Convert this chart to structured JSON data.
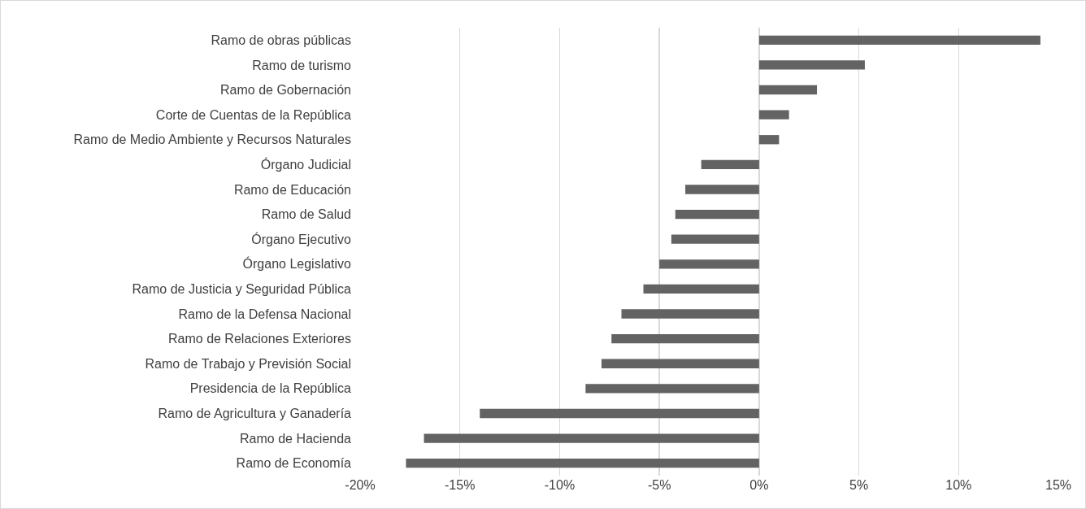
{
  "chart_data": {
    "type": "bar",
    "orientation": "horizontal",
    "categories": [
      "Ramo de obras públicas",
      "Ramo de turismo",
      "Ramo de Gobernación",
      "Corte de Cuentas de la República",
      "Ramo de Medio Ambiente y Recursos Naturales",
      "Órgano Judicial",
      "Ramo de Educación",
      "Ramo de Salud",
      "Órgano Ejecutivo",
      "Órgano Legislativo",
      "Ramo de Justicia y Seguridad Pública",
      "Ramo de la Defensa Nacional",
      "Ramo de Relaciones Exteriores",
      "Ramo de Trabajo y Previsión Social",
      "Presidencia de la República",
      "Ramo de Agricultura y Ganadería",
      "Ramo de Hacienda",
      "Ramo de Economía"
    ],
    "values": [
      14.1,
      5.3,
      2.9,
      1.5,
      1.0,
      -2.9,
      -3.7,
      -4.2,
      -4.4,
      -5.0,
      -5.8,
      -6.9,
      -7.4,
      -7.9,
      -8.7,
      -14.0,
      -16.8,
      -17.7
    ],
    "color": "#636363",
    "xlim": [
      -20,
      15
    ],
    "xticks": [
      {
        "value": -20,
        "label": "-20%"
      },
      {
        "value": -15,
        "label": "-15%"
      },
      {
        "value": -10,
        "label": "-10%"
      },
      {
        "value": -5,
        "label": "-5%"
      },
      {
        "value": 0,
        "label": "0%"
      },
      {
        "value": 5,
        "label": "5%"
      },
      {
        "value": 10,
        "label": "10%"
      },
      {
        "value": 15,
        "label": "15%"
      }
    ],
    "grid": "x",
    "legend": false
  }
}
